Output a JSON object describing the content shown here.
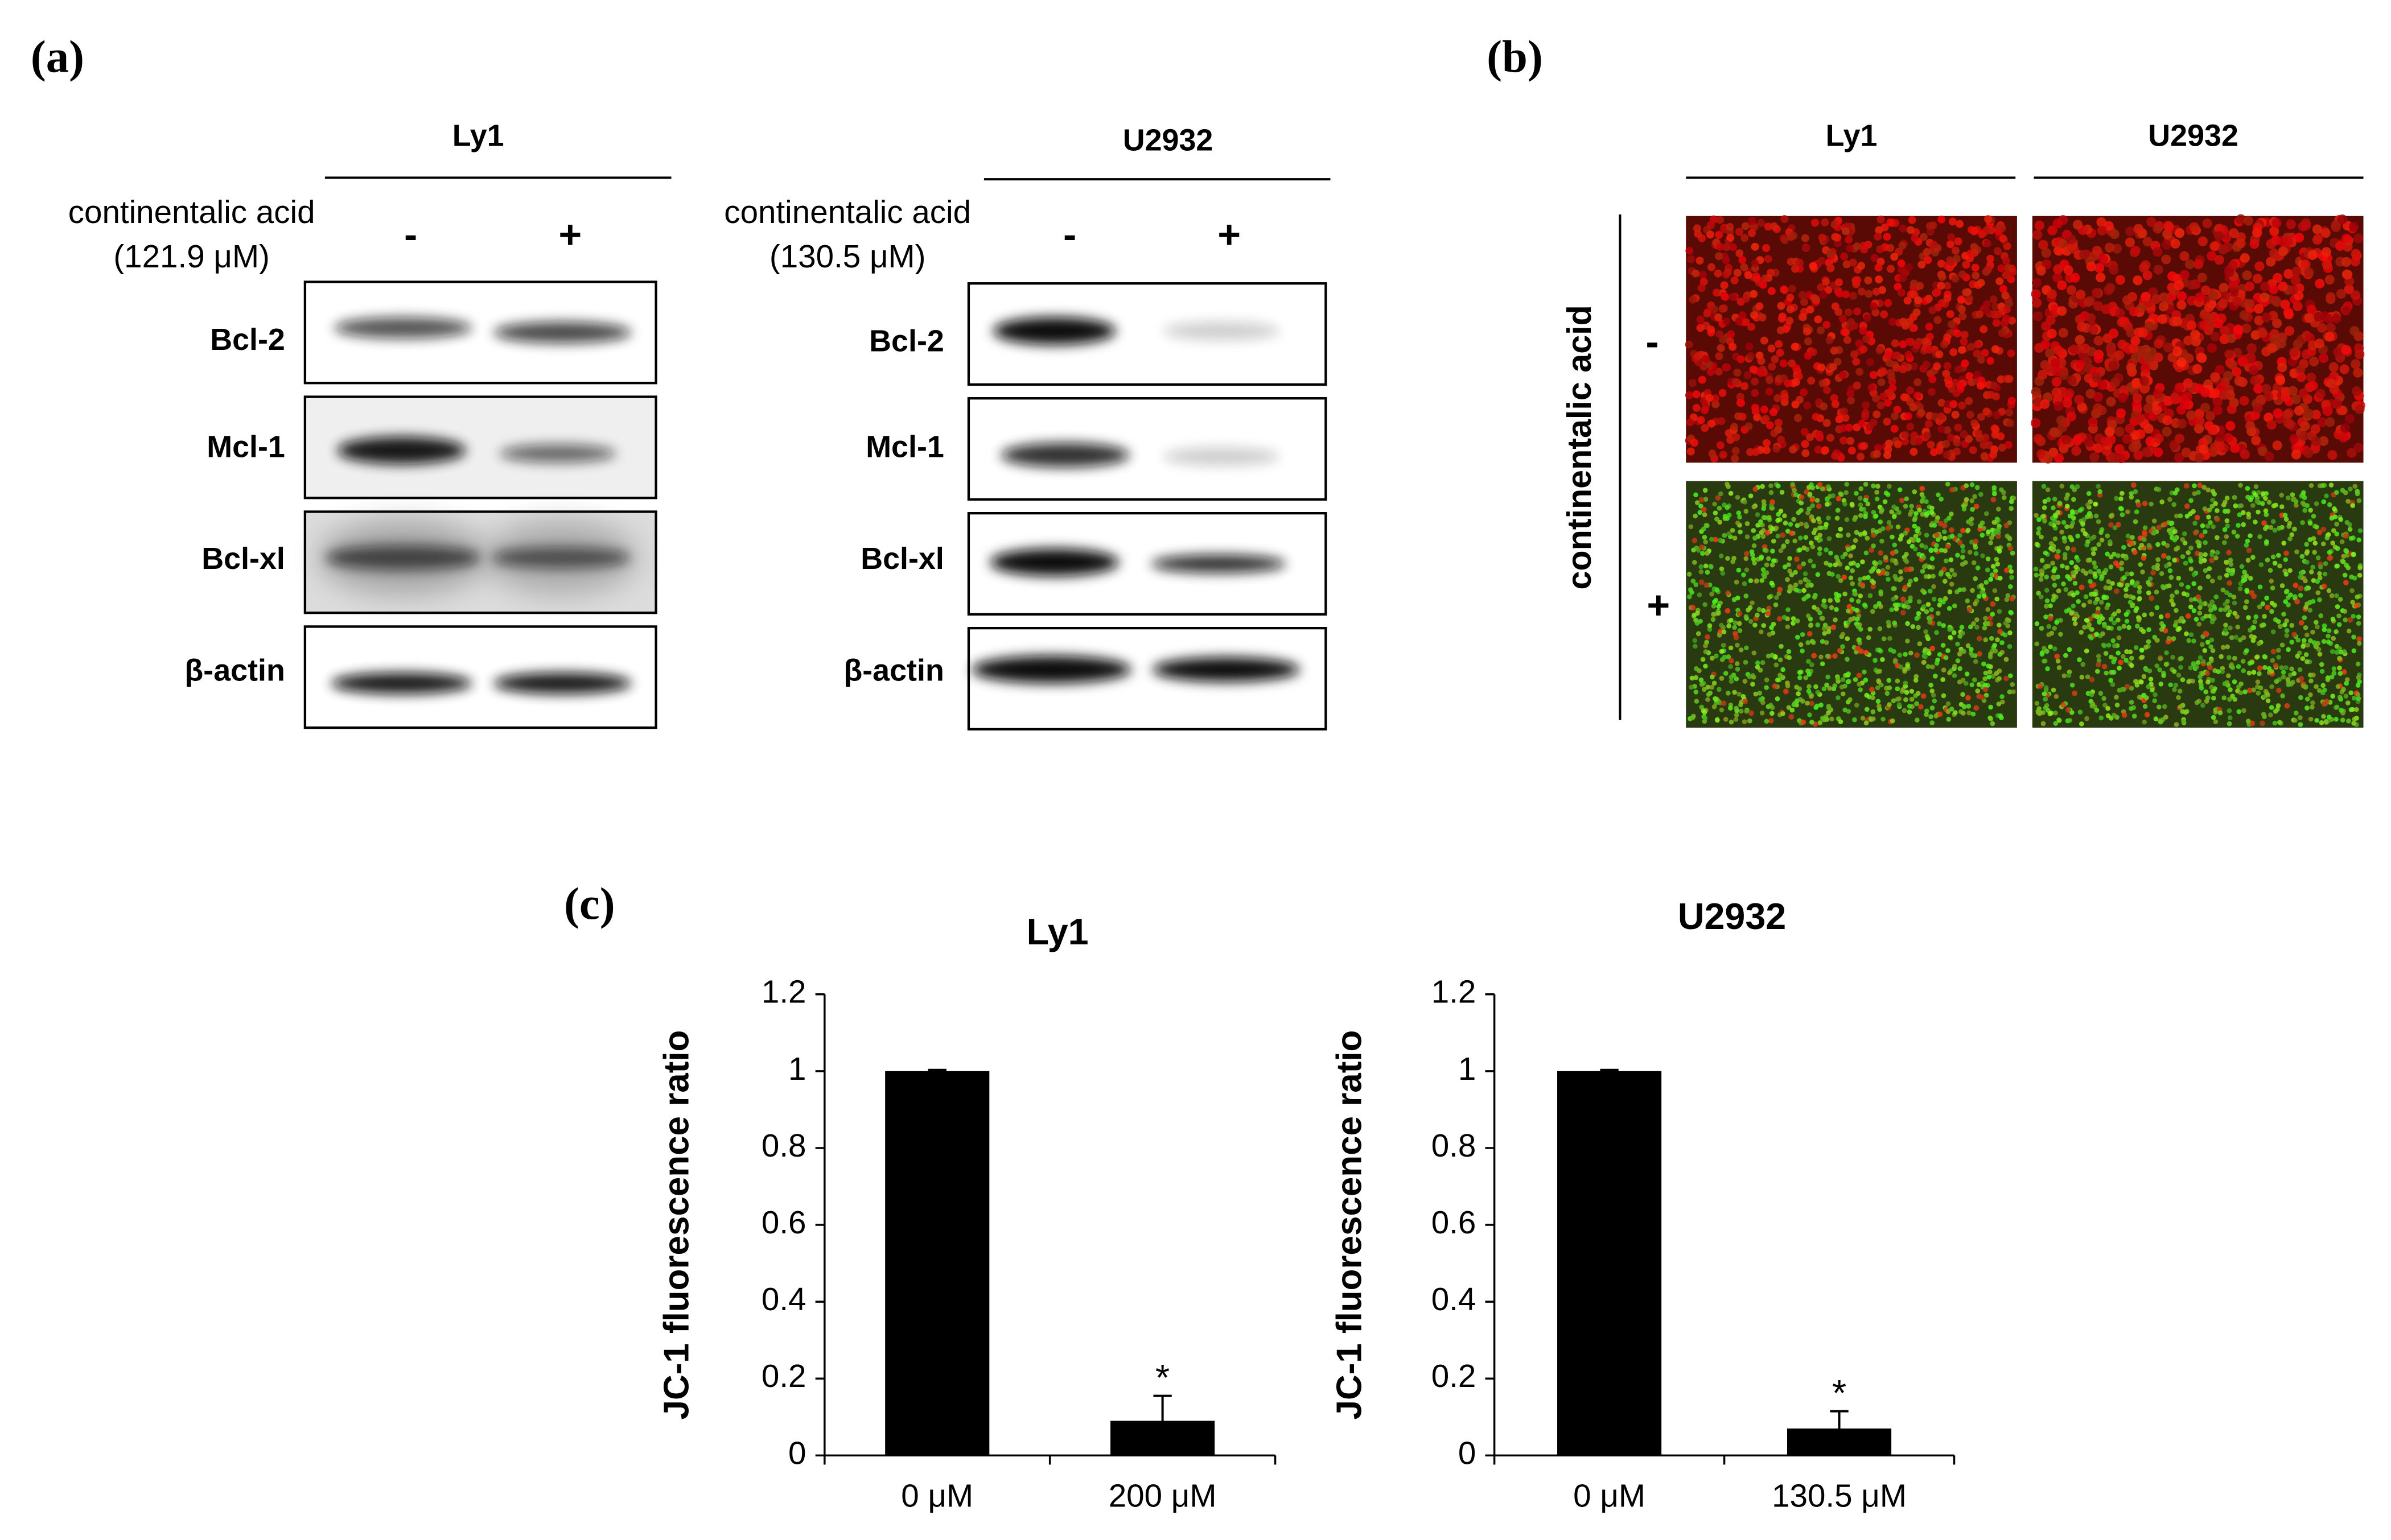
{
  "panel_labels": [
    "(a)",
    "(b)",
    "(c)"
  ],
  "blots": [
    {
      "cell": "Ly1",
      "treatment": "continentalic acid",
      "dose": "(121.9 μM)",
      "minus": "-",
      "plus": "+",
      "proteins": [
        "Bcl-2",
        "Mcl-1",
        "Bcl-xl",
        "β-actin"
      ]
    },
    {
      "cell": "U2932",
      "treatment": "continentalic acid",
      "dose": "(130.5 μM)",
      "minus": "-",
      "plus": "+",
      "proteins": [
        "Bcl-2",
        "Mcl-1",
        "Bcl-xl",
        "β-actin"
      ]
    }
  ],
  "imaging": {
    "columns": [
      "Ly1",
      "U2932"
    ],
    "row_title": "continentalic acid",
    "rows": [
      "-",
      "+"
    ]
  },
  "chart_data": [
    {
      "type": "bar",
      "title": "Ly1",
      "y_label": "JC-1 fluorescence ratio",
      "categories": [
        "0 μM",
        "200 μM"
      ],
      "values": [
        1,
        0.09
      ],
      "errors": [
        0.003,
        0.065
      ],
      "annotation": "*",
      "color": "#000000",
      "ylim": [
        0,
        1.2
      ],
      "yticks": [
        0,
        0.2,
        0.4,
        0.6,
        0.8,
        1,
        1.2
      ]
    },
    {
      "type": "bar",
      "title": "U2932",
      "y_label": "JC-1 fluorescence ratio",
      "categories": [
        "0 μM",
        "130.5 μM"
      ],
      "values": [
        1,
        0.07
      ],
      "errors": [
        0.003,
        0.045
      ],
      "annotation": "*",
      "color": "#000000",
      "ylim": [
        0,
        1.2
      ],
      "yticks": [
        0,
        0.2,
        0.4,
        0.6,
        0.8,
        1,
        1.2
      ]
    }
  ]
}
